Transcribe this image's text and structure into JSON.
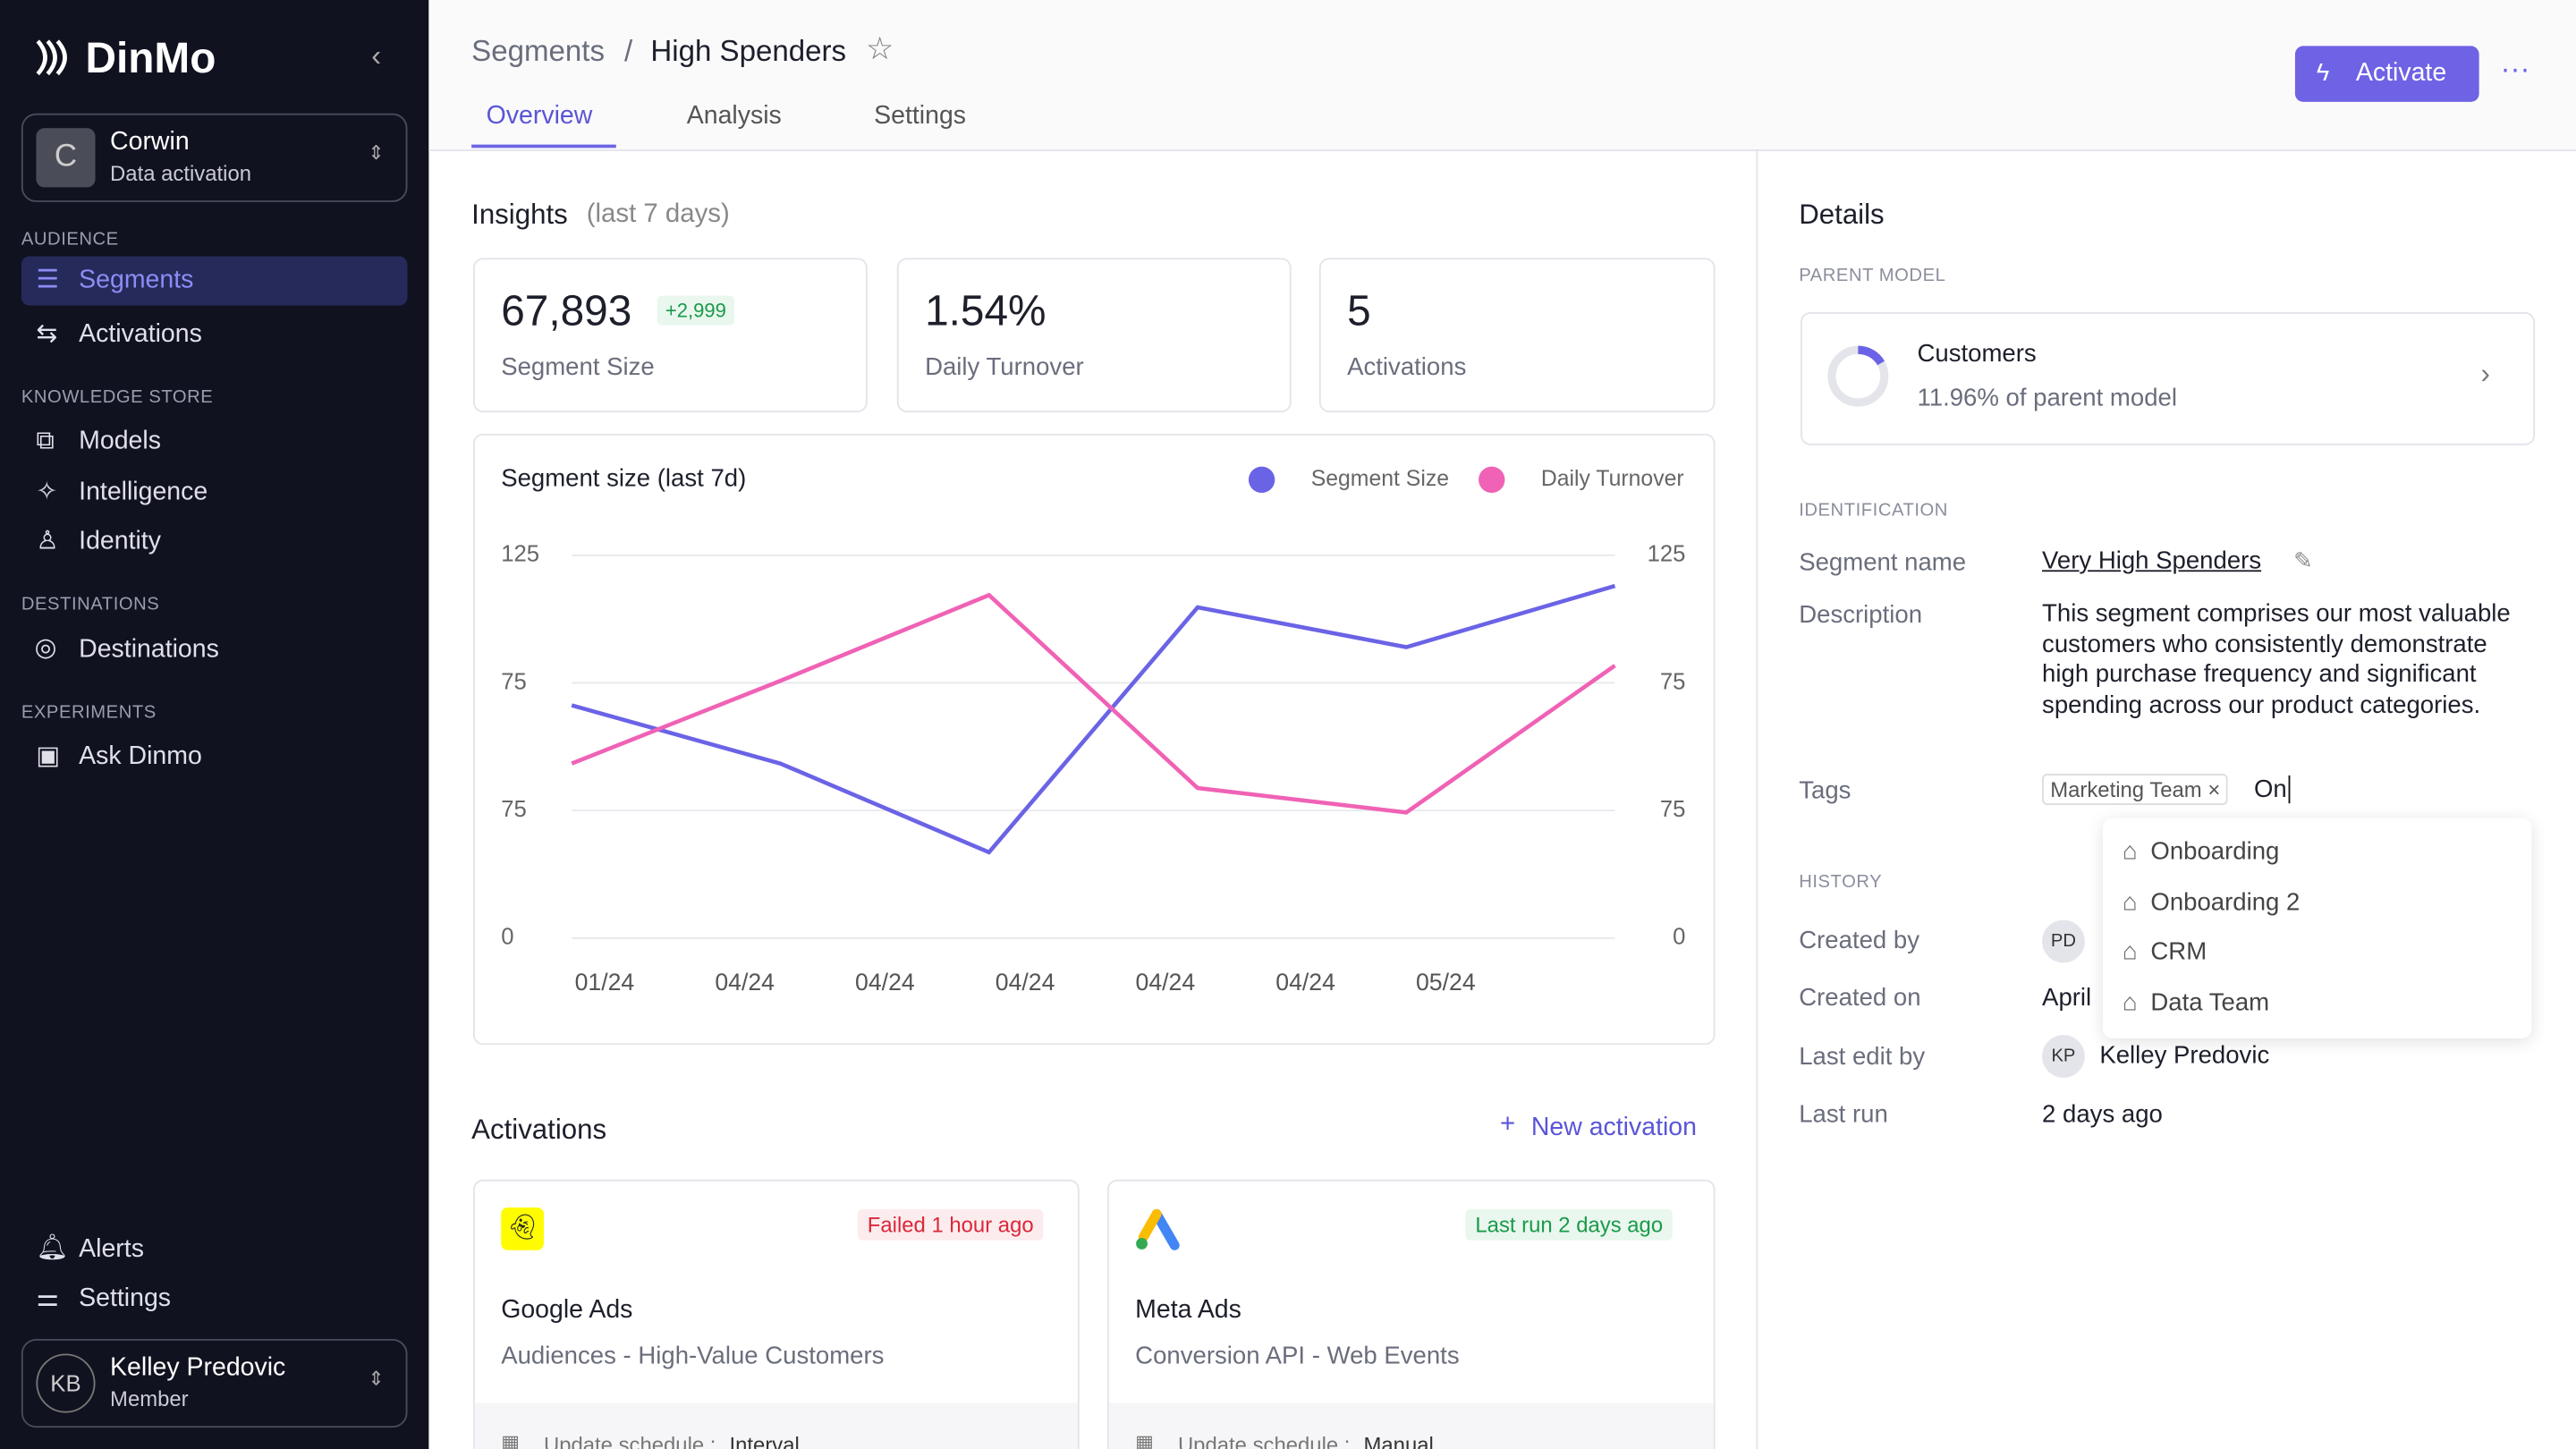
{
  "sidebar": {
    "brand": "DinMo",
    "workspace": {
      "initial": "C",
      "name": "Corwin",
      "subtitle": "Data activation"
    },
    "sections": [
      {
        "title": "AUDIENCE",
        "items": [
          "Segments",
          "Activations"
        ]
      },
      {
        "title": "KNOWLEDGE STORE",
        "items": [
          "Models",
          "Intelligence",
          "Identity"
        ]
      },
      {
        "title": "DESTINATIONS",
        "items": [
          "Destinations"
        ]
      },
      {
        "title": "EXPERIMENTS",
        "items": [
          "Ask Dinmo"
        ]
      }
    ],
    "footer_items": [
      "Alerts",
      "Settings"
    ],
    "user": {
      "initials": "KB",
      "name": "Kelley Predovic",
      "role": "Member"
    }
  },
  "header": {
    "breadcrumb": [
      "Segments",
      "/",
      "High Spenders"
    ],
    "tabs": [
      "Overview",
      "Analysis",
      "Settings"
    ],
    "action": "Activate"
  },
  "insights": {
    "title": "Insights",
    "period": "(last 7 days)",
    "cards": [
      {
        "value": "67,893",
        "delta": "+2,999",
        "label": "Segment Size"
      },
      {
        "value": "1.54%",
        "label": "Daily Turnover"
      },
      {
        "value": "5",
        "label": "Activations"
      }
    ]
  },
  "chart": {
    "type": "line",
    "title": "Segment size (last 7d)",
    "x_labels": [
      "01/24",
      "04/24",
      "04/24",
      "04/24",
      "04/24",
      "04/24",
      "05/24"
    ],
    "y_labels": [
      "125",
      "75",
      "75",
      "0"
    ],
    "ylim": [
      0,
      125
    ],
    "series": [
      {
        "name": "Segment Size",
        "color": "#6b63e6",
        "values": [
          76,
          57,
          28,
          108,
          95,
          115
        ]
      },
      {
        "name": "Daily Turnover",
        "color": "#f062b5",
        "values": [
          57,
          84,
          112,
          49,
          41,
          89
        ]
      }
    ]
  },
  "activations": {
    "title": "Activations",
    "new_button": "New activation",
    "cards": [
      {
        "status": "Failed 1 hour ago",
        "name": "Google Ads",
        "description": "Audiences - High-Value Customers",
        "schedule_label": "Update schedule :",
        "schedule": "Interval"
      },
      {
        "status": "Last run 2 days ago",
        "name": "Meta Ads",
        "description": "Conversion API - Web Events",
        "schedule_label": "Update schedule :",
        "schedule": "Manual"
      }
    ]
  },
  "details": {
    "title": "Details",
    "parent_model_heading": "PARENT MODEL",
    "parent": {
      "name": "Customers",
      "share": "11.96% of parent model"
    },
    "identification_heading": "IDENTIFICATION",
    "segment_name_label": "Segment name",
    "segment_name": "Very High Spenders",
    "description_label": "Description",
    "description": "This segment comprises our most valuable customers who consistently demonstrate high purchase frequency and significant spending across our product categories.",
    "tags_label": "Tags",
    "tags": [
      "Marketing Team"
    ],
    "tag_input": "On",
    "suggestions": [
      "Onboarding",
      "Onboarding 2",
      "CRM",
      "Data Team"
    ],
    "history_heading": "HISTORY",
    "created_by_label": "Created by",
    "created_by_initials": "PD",
    "created_on_label": "Created on",
    "created_on": "April",
    "last_edit_label": "Last edit by",
    "last_edit_initials": "KP",
    "last_edit": "Kelley Predovic",
    "last_run_label": "Last run",
    "last_run": "2 days ago"
  }
}
